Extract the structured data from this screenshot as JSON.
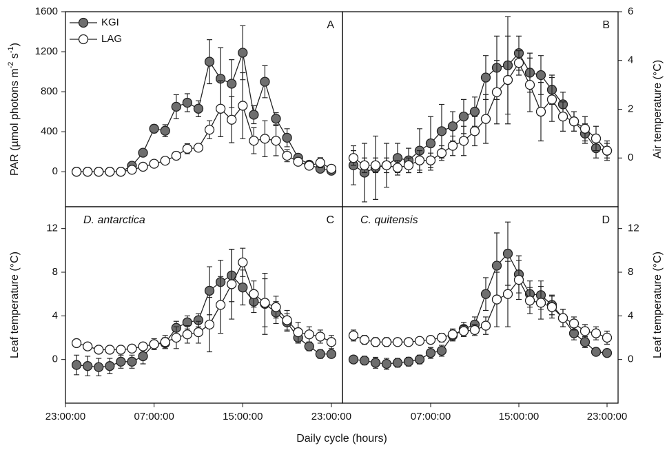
{
  "xlabel": "Daily cycle (hours)",
  "chart_data": [
    {
      "type": "line",
      "panel_label": "A",
      "ylabel": [
        {
          "text": "PAR (µmol photons m"
        },
        {
          "text": "-2",
          "superscript": true
        },
        {
          "text": " s"
        },
        {
          "text": "-1",
          "superscript": true
        },
        {
          "text": ")"
        }
      ],
      "yaxis_side": "left",
      "legend": "upper left",
      "x": [
        1,
        2,
        3,
        4,
        5,
        6,
        7,
        8,
        9,
        10,
        11,
        12,
        13,
        14,
        15,
        16,
        17,
        18,
        19,
        20,
        21,
        22,
        23,
        24
      ],
      "xlim": [
        0,
        25
      ],
      "ylim": [
        -350,
        1600
      ],
      "yticks": [
        0,
        400,
        800,
        1200,
        1600
      ],
      "series": [
        {
          "name": "KGI",
          "color": "#6e6e6e",
          "values": [
            0,
            0,
            0,
            0,
            0,
            60,
            190,
            430,
            410,
            650,
            690,
            630,
            1100,
            930,
            880,
            1190,
            570,
            900,
            530,
            340,
            140,
            70,
            30,
            10
          ],
          "errors": [
            10,
            10,
            10,
            10,
            10,
            20,
            30,
            40,
            60,
            120,
            90,
            80,
            220,
            310,
            240,
            270,
            90,
            160,
            60,
            90,
            30,
            20,
            20,
            15
          ]
        },
        {
          "name": "LAG",
          "color": "#ffffff",
          "values": [
            0,
            0,
            0,
            0,
            0,
            20,
            50,
            80,
            110,
            160,
            230,
            240,
            420,
            630,
            520,
            660,
            310,
            330,
            310,
            160,
            100,
            60,
            90,
            30
          ],
          "errors": [
            10,
            10,
            10,
            10,
            10,
            15,
            20,
            20,
            30,
            40,
            50,
            20,
            90,
            280,
            230,
            330,
            130,
            180,
            150,
            60,
            30,
            30,
            50,
            30
          ]
        }
      ]
    },
    {
      "type": "line",
      "panel_label": "B",
      "ylabel": [
        {
          "text": "Air temperature (°C)"
        }
      ],
      "yaxis_side": "right",
      "x": [
        1,
        2,
        3,
        4,
        5,
        6,
        7,
        8,
        9,
        10,
        11,
        12,
        13,
        14,
        15,
        16,
        17,
        18,
        19,
        20,
        21,
        22,
        23,
        24
      ],
      "xlim": [
        0,
        25
      ],
      "ylim": [
        -2,
        6
      ],
      "yticks": [
        0,
        2,
        4,
        6
      ],
      "series": [
        {
          "color": "#6e6e6e",
          "values": [
            -0.3,
            -0.6,
            -0.4,
            -0.3,
            0.0,
            -0.1,
            0.3,
            0.6,
            1.1,
            1.3,
            1.7,
            1.9,
            3.3,
            3.7,
            3.8,
            4.3,
            3.5,
            3.4,
            2.8,
            2.2,
            1.5,
            1.0,
            0.4,
            0.3
          ],
          "errors": [
            0.8,
            1.2,
            1.3,
            0.9,
            0.6,
            0.5,
            0.9,
            1.1,
            1.1,
            0.6,
            0.7,
            0.6,
            0.9,
            1.3,
            2.0,
            0.7,
            0.8,
            0.8,
            0.6,
            0.5,
            0.4,
            0.4,
            0.4,
            0.3
          ]
        },
        {
          "color": "#ffffff",
          "values": [
            0.0,
            -0.3,
            -0.3,
            -0.3,
            -0.4,
            -0.3,
            -0.1,
            -0.1,
            0.2,
            0.5,
            0.7,
            1.1,
            1.6,
            2.7,
            3.2,
            3.9,
            3.0,
            1.9,
            2.4,
            1.7,
            1.5,
            1.2,
            0.8,
            0.3
          ],
          "errors": [
            0.3,
            0.3,
            0.3,
            0.3,
            0.3,
            0.3,
            0.4,
            0.3,
            0.3,
            0.4,
            0.6,
            0.6,
            1.0,
            1.3,
            1.8,
            0.5,
            1.1,
            1.2,
            0.9,
            0.6,
            0.4,
            0.5,
            0.5,
            0.4
          ]
        }
      ]
    },
    {
      "type": "line",
      "panel_label": "C",
      "annotation": "D. antarctica",
      "ylabel": [
        {
          "text": "Leaf temperature (°C)"
        }
      ],
      "yaxis_side": "left",
      "x": [
        1,
        2,
        3,
        4,
        5,
        6,
        7,
        8,
        9,
        10,
        11,
        12,
        13,
        14,
        15,
        16,
        17,
        18,
        19,
        20,
        21,
        22,
        23,
        24
      ],
      "xlim": [
        0,
        25
      ],
      "ylim": [
        -4,
        14
      ],
      "yticks": [
        0,
        4,
        8,
        12
      ],
      "xticks": [
        {
          "value": 0,
          "label": "23:00:00"
        },
        {
          "value": 8,
          "label": "07:00:00"
        },
        {
          "value": 16,
          "label": "15:00:00"
        },
        {
          "value": 24,
          "label": "23:00:00"
        }
      ],
      "series": [
        {
          "color": "#6e6e6e",
          "values": [
            -0.5,
            -0.6,
            -0.7,
            -0.6,
            -0.2,
            -0.2,
            0.3,
            1.4,
            1.5,
            2.9,
            3.4,
            3.6,
            6.3,
            7.1,
            7.7,
            6.6,
            5.3,
            5.1,
            4.3,
            3.4,
            2.0,
            1.2,
            0.5,
            0.5
          ],
          "errors": [
            0.9,
            0.9,
            0.8,
            0.7,
            0.6,
            0.6,
            0.7,
            0.5,
            0.5,
            0.6,
            0.6,
            0.6,
            2.2,
            2.0,
            2.4,
            1.6,
            1.0,
            2.8,
            1.0,
            0.8,
            0.5,
            0.4,
            0.4,
            0.3
          ]
        },
        {
          "color": "#ffffff",
          "values": [
            1.5,
            1.2,
            0.9,
            0.9,
            0.9,
            1.0,
            1.2,
            1.4,
            1.6,
            2.0,
            2.3,
            2.5,
            3.2,
            5.0,
            6.9,
            8.9,
            6.0,
            5.2,
            4.8,
            3.6,
            2.5,
            2.3,
            2.1,
            1.6
          ],
          "errors": [
            0.3,
            0.3,
            0.3,
            0.3,
            0.3,
            0.3,
            0.3,
            0.3,
            0.6,
            1.0,
            0.8,
            1.0,
            2.5,
            2.6,
            3.2,
            1.3,
            1.2,
            2.2,
            1.0,
            0.9,
            0.9,
            0.7,
            0.6,
            0.6
          ]
        }
      ]
    },
    {
      "type": "line",
      "panel_label": "D",
      "annotation": "C. quitensis",
      "ylabel": [
        {
          "text": "Leaf temperature (°C)"
        }
      ],
      "yaxis_side": "right",
      "x": [
        1,
        2,
        3,
        4,
        5,
        6,
        7,
        8,
        9,
        10,
        11,
        12,
        13,
        14,
        15,
        16,
        17,
        18,
        19,
        20,
        21,
        22,
        23,
        24
      ],
      "xlim": [
        0,
        25
      ],
      "ylim": [
        -4,
        14
      ],
      "yticks": [
        0,
        4,
        8,
        12
      ],
      "xticks": [
        {
          "value": 8,
          "label": "07:00:00"
        },
        {
          "value": 16,
          "label": "15:00:00"
        },
        {
          "value": 24,
          "label": "23:00:00"
        }
      ],
      "series": [
        {
          "color": "#6e6e6e",
          "values": [
            0.0,
            -0.1,
            -0.3,
            -0.4,
            -0.3,
            -0.2,
            0.0,
            0.6,
            0.8,
            2.2,
            2.8,
            3.2,
            6.0,
            8.6,
            9.7,
            7.8,
            6.0,
            5.9,
            5.0,
            3.8,
            2.4,
            1.6,
            0.7,
            0.6
          ],
          "errors": [
            0.3,
            0.4,
            0.5,
            0.5,
            0.4,
            0.4,
            0.4,
            0.5,
            0.5,
            0.5,
            0.6,
            0.7,
            1.5,
            3.0,
            2.9,
            1.7,
            1.2,
            1.3,
            0.9,
            0.8,
            0.6,
            0.5,
            0.3,
            0.3
          ]
        },
        {
          "color": "#ffffff",
          "values": [
            2.2,
            1.8,
            1.6,
            1.6,
            1.6,
            1.6,
            1.7,
            1.8,
            2.0,
            2.3,
            2.6,
            2.7,
            3.1,
            5.5,
            6.0,
            7.3,
            5.4,
            5.2,
            4.8,
            3.8,
            3.3,
            2.6,
            2.4,
            2.0
          ],
          "errors": [
            0.5,
            0.4,
            0.4,
            0.4,
            0.3,
            0.3,
            0.3,
            0.3,
            0.4,
            0.5,
            0.5,
            0.5,
            0.8,
            2.5,
            3.0,
            1.8,
            1.2,
            1.5,
            1.0,
            0.8,
            0.6,
            0.6,
            0.6,
            0.6
          ]
        }
      ]
    }
  ]
}
